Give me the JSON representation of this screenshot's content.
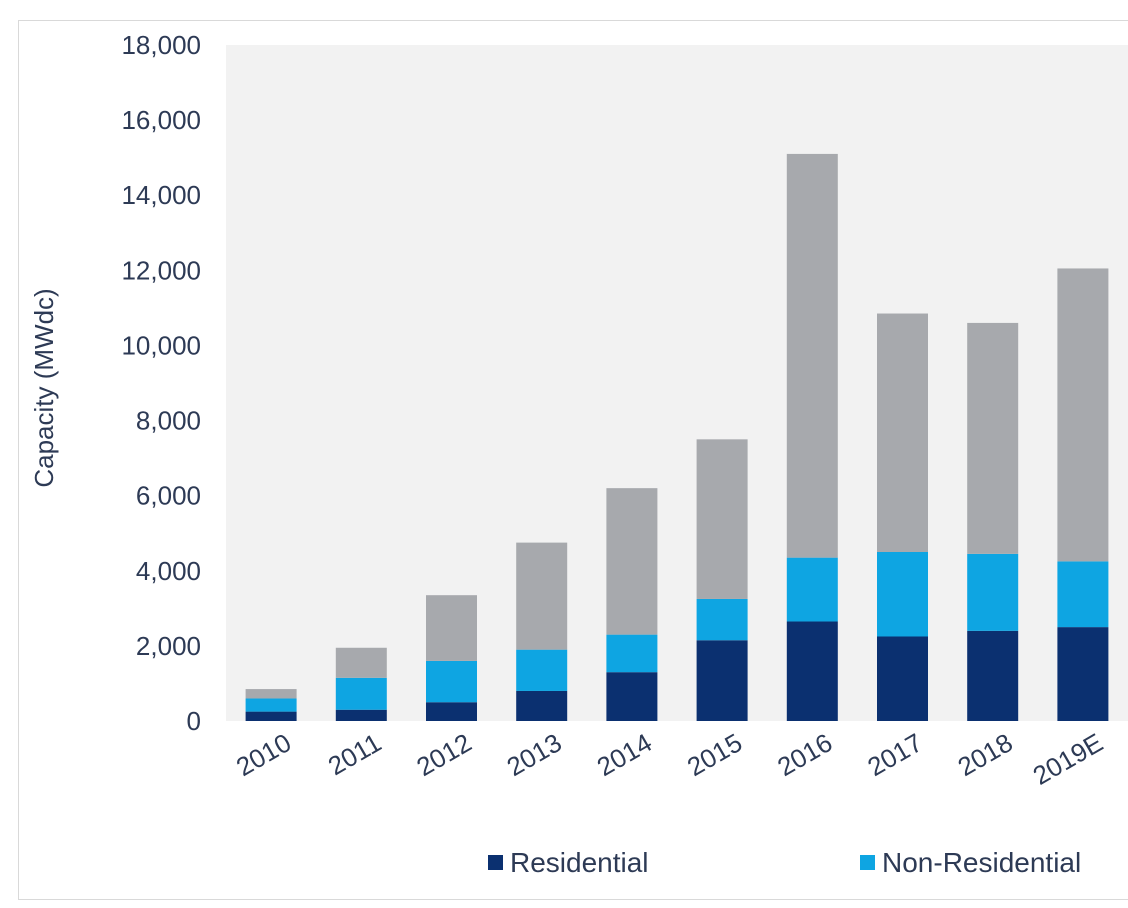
{
  "chart_data": {
    "type": "bar",
    "stacked": true,
    "title": "",
    "xlabel": "",
    "ylabel": "Capacity (MWdc)",
    "ylim": [
      0,
      18000
    ],
    "yticks": [
      "0",
      "2,000",
      "4,000",
      "6,000",
      "8,000",
      "10,000",
      "12,000",
      "14,000",
      "16,000",
      "18,000"
    ],
    "categories": [
      "2010",
      "2011",
      "2012",
      "2013",
      "2014",
      "2015",
      "2016",
      "2017",
      "2018",
      "2019E"
    ],
    "series": [
      {
        "name": "Residential",
        "color": "#0b3070",
        "values": [
          250,
          300,
          500,
          800,
          1300,
          2150,
          2650,
          2250,
          2400,
          2500
        ]
      },
      {
        "name": "Non-Residential",
        "color": "#0ea5e2",
        "values": [
          350,
          850,
          1100,
          1100,
          1000,
          1100,
          1700,
          2250,
          2050,
          1750
        ]
      },
      {
        "name": "",
        "color": "#a7a9ad",
        "values": [
          250,
          800,
          1750,
          2850,
          3900,
          4250,
          10750,
          6350,
          6150,
          7800
        ]
      }
    ],
    "legend": [
      "Residential",
      "Non-Residential"
    ],
    "plot_background": "#f2f2f2",
    "grid": false,
    "legend_position": "bottom"
  }
}
